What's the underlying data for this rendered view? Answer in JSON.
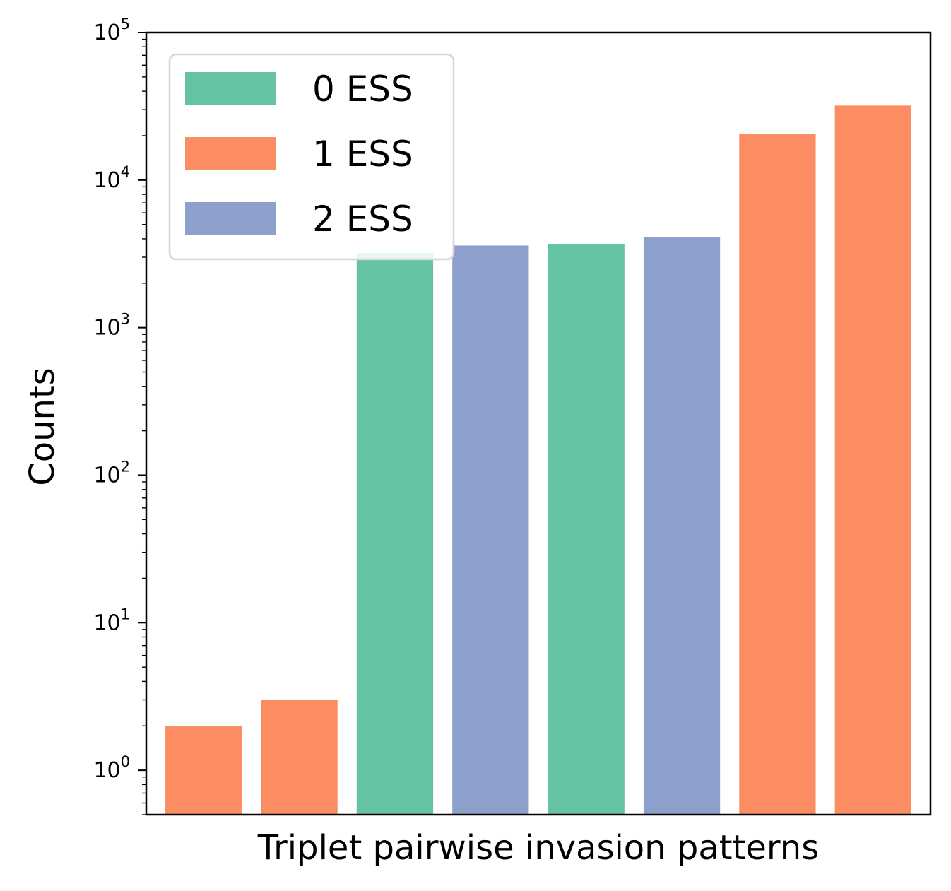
{
  "chart_data": {
    "type": "bar",
    "xlabel": "Triplet pairwise invasion patterns",
    "ylabel": "Counts",
    "yscale": "log",
    "ylim": [
      0.5,
      100000
    ],
    "yticks": [
      {
        "value": 1,
        "base": "10",
        "exp": "0"
      },
      {
        "value": 10,
        "base": "10",
        "exp": "1"
      },
      {
        "value": 100,
        "base": "10",
        "exp": "2"
      },
      {
        "value": 1000,
        "base": "10",
        "exp": "3"
      },
      {
        "value": 10000,
        "base": "10",
        "exp": "4"
      },
      {
        "value": 100000,
        "base": "10",
        "exp": "5"
      }
    ],
    "grid": false,
    "legend_position": "top-left",
    "legend": [
      {
        "label": "0 ESS",
        "color": "#66c2a5"
      },
      {
        "label": "1 ESS",
        "color": "#fc8d62"
      },
      {
        "label": "2 ESS",
        "color": "#8da0cb"
      }
    ],
    "bars": [
      {
        "value": 2,
        "group": 1
      },
      {
        "value": 3,
        "group": 1
      },
      {
        "value": 3200,
        "group": 0
      },
      {
        "value": 3600,
        "group": 2
      },
      {
        "value": 3700,
        "group": 0
      },
      {
        "value": 4100,
        "group": 2
      },
      {
        "value": 20500,
        "group": 1
      },
      {
        "value": 32000,
        "group": 1
      }
    ]
  }
}
